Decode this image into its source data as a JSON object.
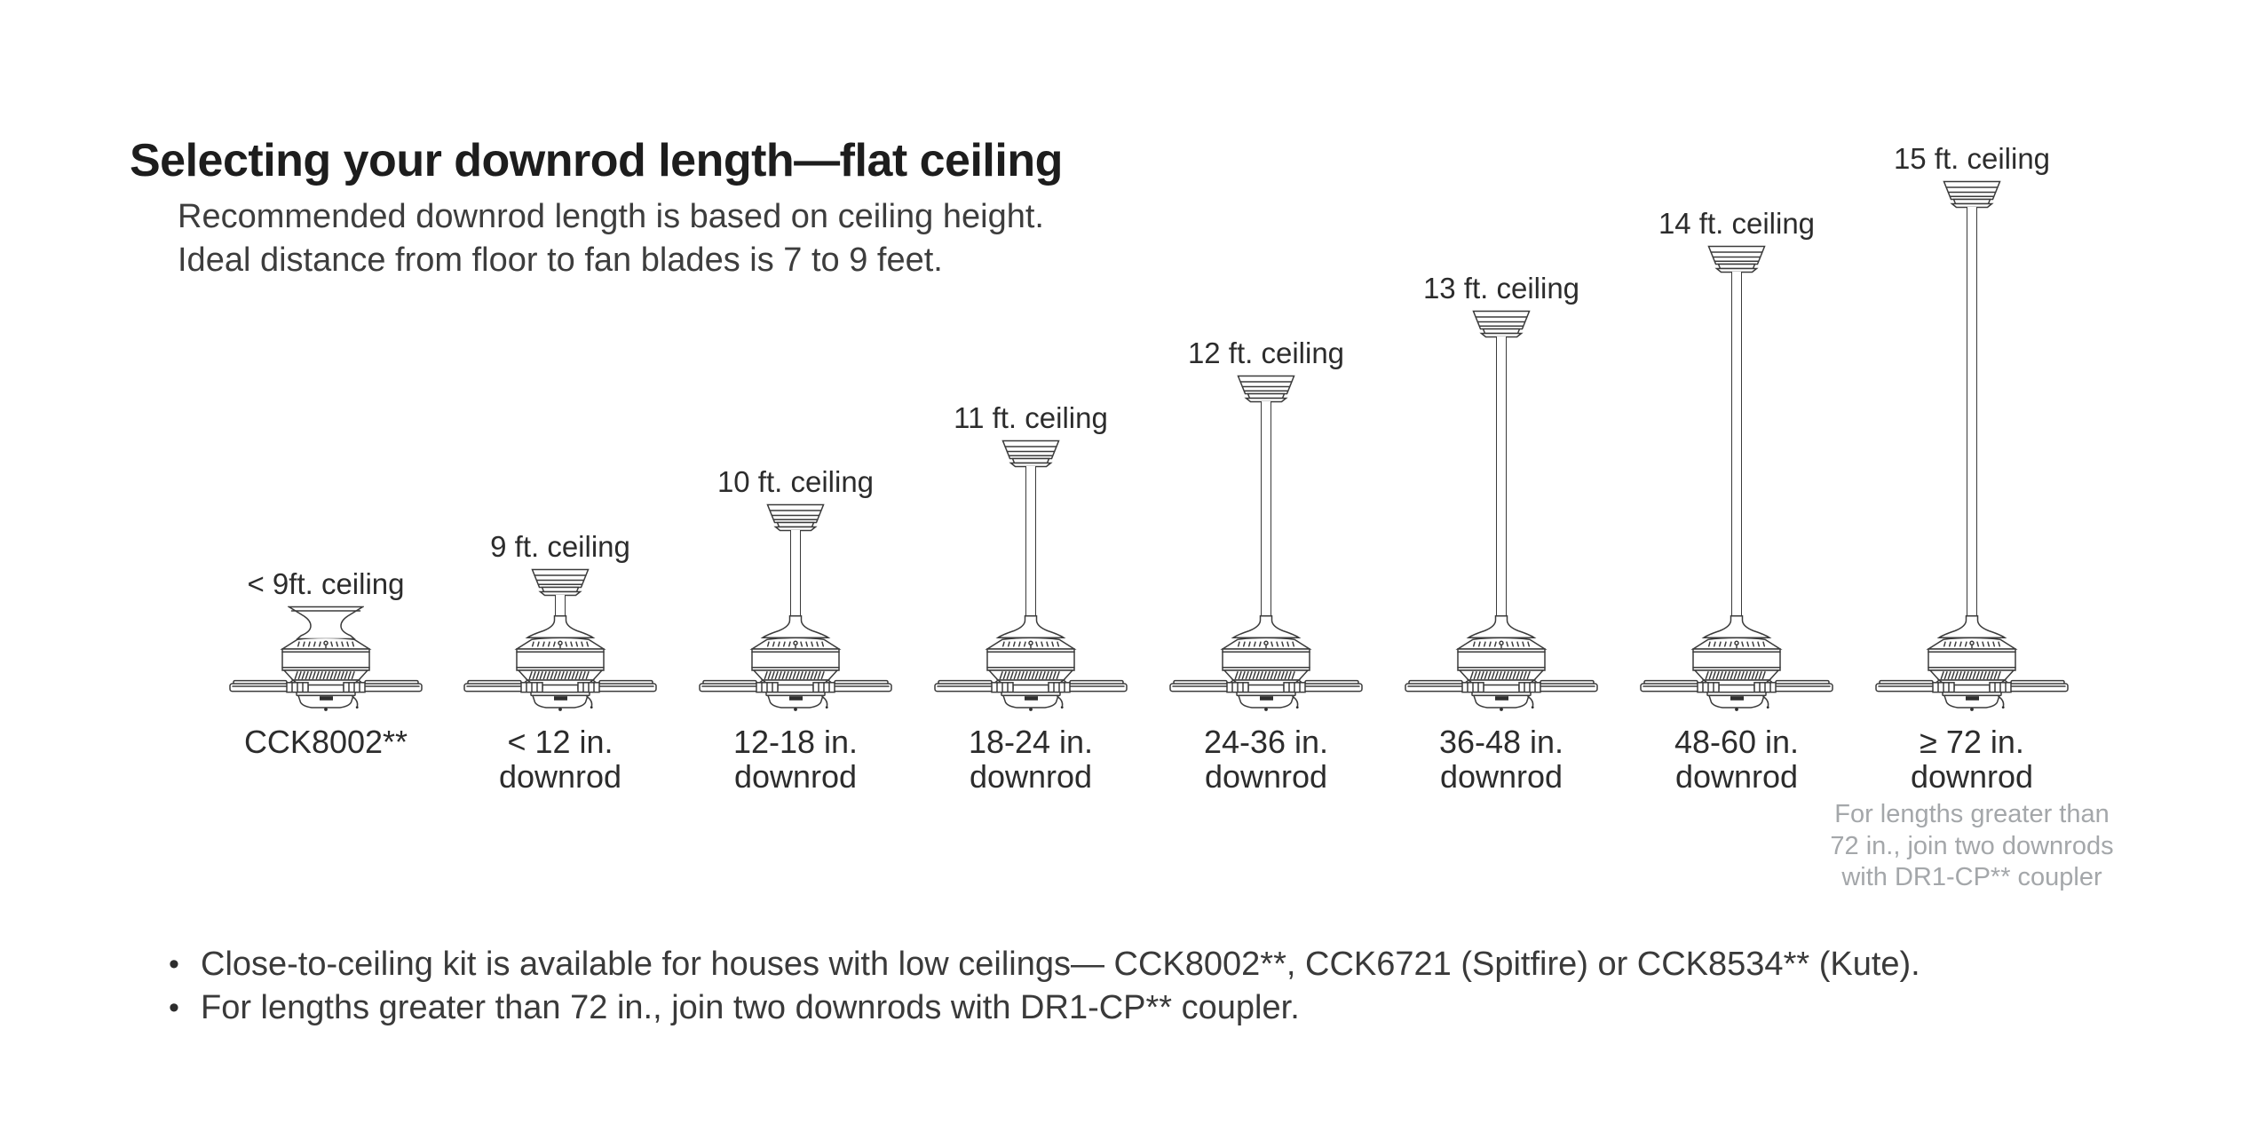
{
  "header": {
    "title": "Selecting your downrod length—flat ceiling",
    "subtitle_line1": "Recommended downrod length is based on ceiling height.",
    "subtitle_line2": "Ideal distance from floor to fan blades is 7 to 9 feet."
  },
  "diagram": {
    "fans": [
      {
        "icon": "flush-mount-ceiling-fan-icon",
        "mount": "flush",
        "ceiling": "< 9ft. ceiling",
        "downrod_line1": "CCK8002**",
        "downrod_line2": ""
      },
      {
        "icon": "downrod-ceiling-fan-icon",
        "mount": "downrod",
        "ceiling": "9 ft. ceiling",
        "downrod_line1": "< 12 in.",
        "downrod_line2": "downrod"
      },
      {
        "icon": "downrod-ceiling-fan-icon",
        "mount": "downrod",
        "ceiling": "10 ft. ceiling",
        "downrod_line1": "12-18 in.",
        "downrod_line2": "downrod"
      },
      {
        "icon": "downrod-ceiling-fan-icon",
        "mount": "downrod",
        "ceiling": "11 ft. ceiling",
        "downrod_line1": "18-24 in.",
        "downrod_line2": "downrod"
      },
      {
        "icon": "downrod-ceiling-fan-icon",
        "mount": "downrod",
        "ceiling": "12 ft. ceiling",
        "downrod_line1": "24-36 in.",
        "downrod_line2": "downrod"
      },
      {
        "icon": "downrod-ceiling-fan-icon",
        "mount": "downrod",
        "ceiling": "13 ft. ceiling",
        "downrod_line1": "36-48 in.",
        "downrod_line2": "downrod"
      },
      {
        "icon": "downrod-ceiling-fan-icon",
        "mount": "downrod",
        "ceiling": "14 ft. ceiling",
        "downrod_line1": "48-60 in.",
        "downrod_line2": "downrod"
      },
      {
        "icon": "downrod-ceiling-fan-icon",
        "mount": "downrod",
        "ceiling": "15 ft. ceiling",
        "downrod_line1": "≥ 72 in.",
        "downrod_line2": "downrod",
        "note_line1": "For lengths greater than",
        "note_line2": "72 in., join two downrods",
        "note_line3": "with DR1-CP** coupler"
      }
    ]
  },
  "footnotes": {
    "bullet_glyph": "•",
    "bullet1": "Close-to-ceiling kit is available for houses with low ceilings— CCK8002**, CCK6721 (Spitfire) or CCK8534** (Kute).",
    "bullet2": "For lengths greater than 72 in., join two downrods with DR1-CP** coupler."
  },
  "colors": {
    "ink": "#2d2d2d",
    "title_ink": "#1d1d1d",
    "line_art": "#3b3b3b",
    "muted_note": "#a4a7aa",
    "background": "#ffffff"
  }
}
